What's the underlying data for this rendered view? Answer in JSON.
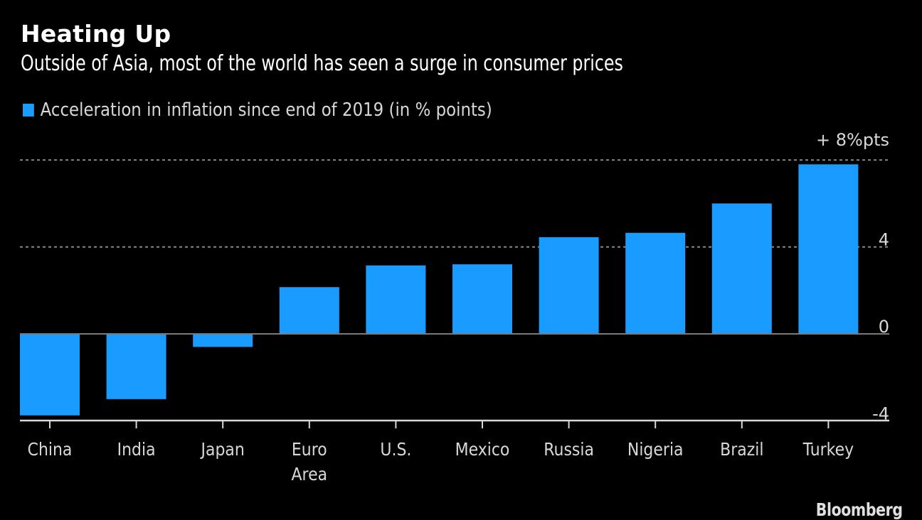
{
  "chart_data": {
    "type": "bar",
    "title": "Heating Up",
    "subtitle": "Outside of Asia, most of the world has seen a surge in consumer prices",
    "legend": [
      {
        "name": "Acceleration in inflation since end of 2019 (in % points)",
        "color": "#1a9bff"
      }
    ],
    "legend_position": "top-left",
    "categories": [
      "China",
      "India",
      "Japan",
      "Euro Area",
      "U.S.",
      "Mexico",
      "Russia",
      "Nigeria",
      "Brazil",
      "Turkey"
    ],
    "category_lines": [
      [
        "China"
      ],
      [
        "India"
      ],
      [
        "Japan"
      ],
      [
        "Euro",
        "Area"
      ],
      [
        "U.S."
      ],
      [
        "Mexico"
      ],
      [
        "Russia"
      ],
      [
        "Nigeria"
      ],
      [
        "Brazil"
      ],
      [
        "Turkey"
      ]
    ],
    "series": [
      {
        "name": "Acceleration in inflation since end of 2019 (in % points)",
        "values": [
          -3.75,
          -3.0,
          -0.6,
          2.15,
          3.15,
          3.2,
          4.45,
          4.65,
          6.0,
          7.8
        ]
      }
    ],
    "ylim": [
      -4,
      8
    ],
    "yticks": [
      8,
      4,
      0,
      -4
    ],
    "ytick_labels": [
      "+ 8%pts",
      "4",
      "0",
      "-4"
    ],
    "gridlines": [
      8,
      4
    ],
    "xlabel": "",
    "ylabel": "",
    "bar_color": "#1a9bff"
  },
  "source": "Bloomberg"
}
